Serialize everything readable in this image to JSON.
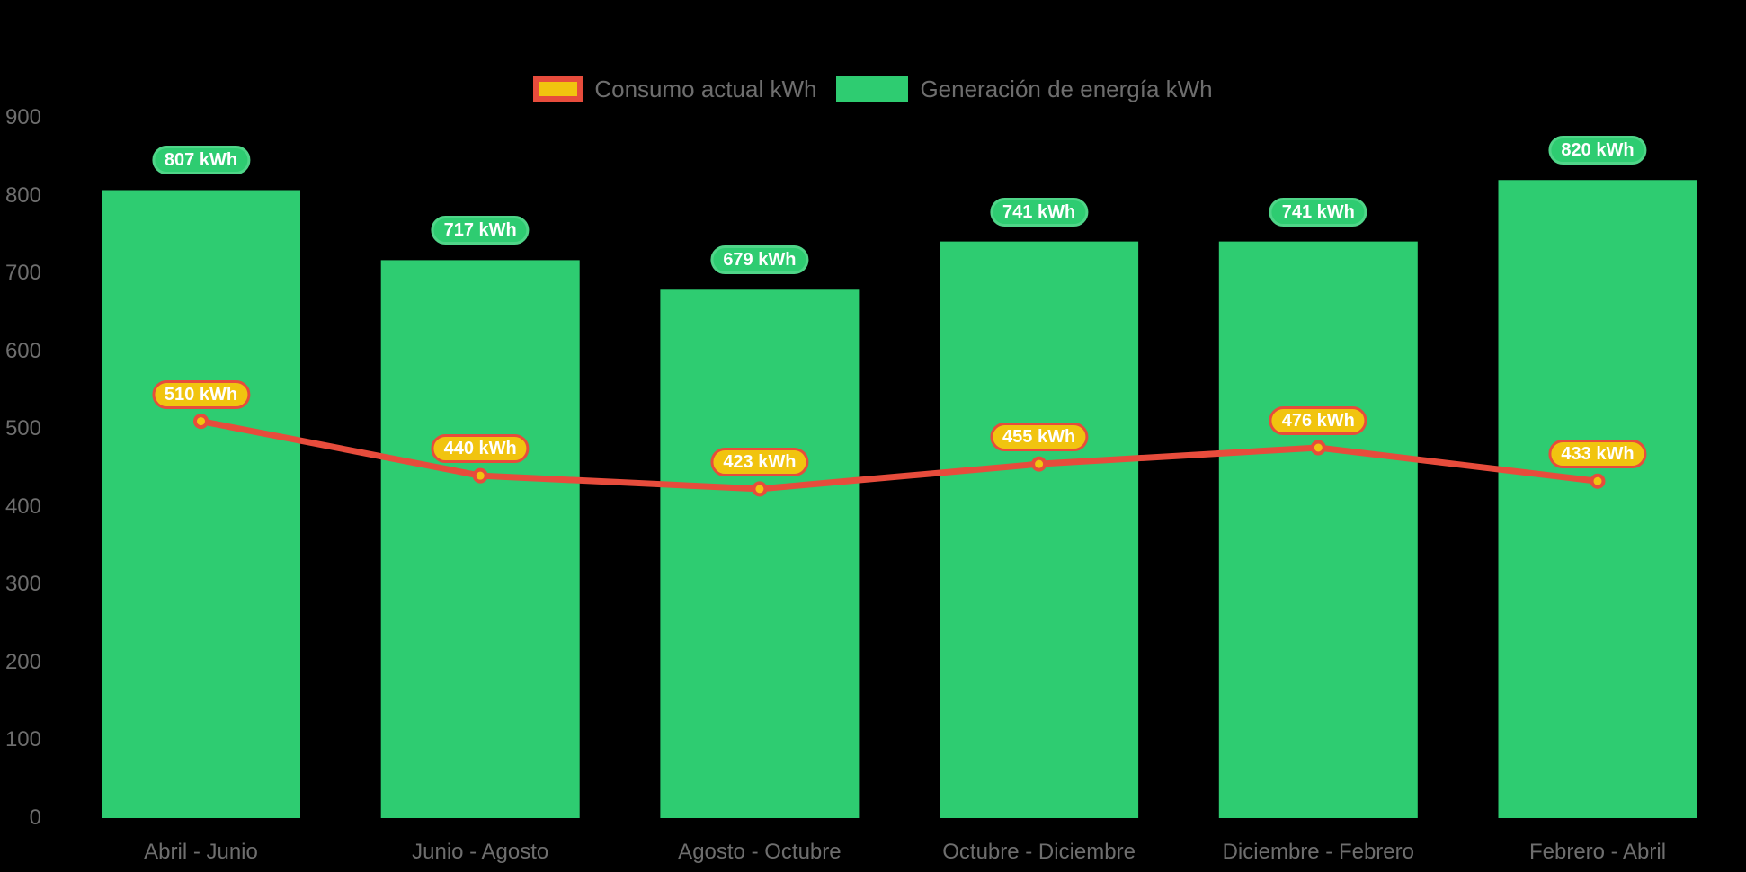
{
  "chart_data": {
    "type": "bar",
    "combo": "bar-with-line-overlay",
    "title": "",
    "categories": [
      "Abril - Junio",
      "Junio - Agosto",
      "Agosto - Octubre",
      "Octubre - Diciembre",
      "Diciembre - Febrero",
      "Febrero - Abril"
    ],
    "series": [
      {
        "name": "Consumo actual kWh",
        "type": "line",
        "values": [
          510,
          440,
          423,
          455,
          476,
          433
        ],
        "color": "#e74c3c",
        "marker_color": "#f1c40f",
        "label_bg": "#f1c40f",
        "label_border": "#e74c3c",
        "label_text_color": "#ffffff"
      },
      {
        "name": "Generación de energía kWh",
        "type": "bar",
        "values": [
          807,
          717,
          679,
          741,
          741,
          820
        ],
        "color": "#2ecc71",
        "label_bg": "#2ecc71",
        "label_border": "#4fd588",
        "label_text_color": "#ffffff"
      }
    ],
    "value_label_suffix": " kWh",
    "yticks": [
      0,
      100,
      200,
      300,
      400,
      500,
      600,
      700,
      800,
      900
    ],
    "ylim": [
      0,
      900
    ],
    "grid": false,
    "axes_visible": false,
    "legend_position": "top-center",
    "axis_text_color": "#6e6e6e",
    "background_color": "#000000"
  }
}
